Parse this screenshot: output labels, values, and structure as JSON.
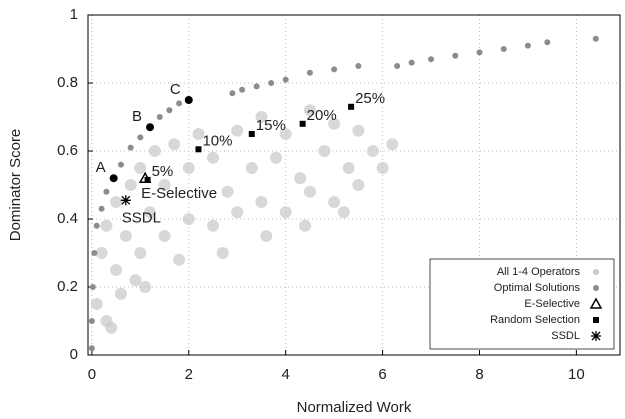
{
  "chart_data": {
    "type": "scatter",
    "x_label": "Normalized Work",
    "y_label": "Dominator Score",
    "xlim": [
      -0.08,
      10.9
    ],
    "ylim": [
      0,
      1
    ],
    "xticks": [
      0,
      2,
      4,
      6,
      8,
      10
    ],
    "yticks": [
      0,
      0.2,
      0.4,
      0.6,
      0.8,
      1
    ],
    "grid": true,
    "legend": "lower right",
    "series": [
      {
        "name": "All 1-4 Operators",
        "color": "#c8c8c8",
        "marker": "cloud",
        "x": [
          0.1,
          0.2,
          0.3,
          0.5,
          0.5,
          0.7,
          0.8,
          1.0,
          1.0,
          1.2,
          1.3,
          1.5,
          1.5,
          1.7,
          2.0,
          2.0,
          2.2,
          2.5,
          2.5,
          2.8,
          3.0,
          3.0,
          3.3,
          3.5,
          3.5,
          3.8,
          4.0,
          4.0,
          4.3,
          4.5,
          4.5,
          4.8,
          5.0,
          5.0,
          5.3,
          5.5,
          5.5,
          5.8,
          6.0,
          6.2,
          0.3,
          0.6,
          0.9,
          1.8,
          2.7,
          3.6,
          4.4,
          5.2,
          1.1,
          0.4
        ],
        "y": [
          0.15,
          0.3,
          0.38,
          0.25,
          0.45,
          0.35,
          0.5,
          0.3,
          0.55,
          0.42,
          0.6,
          0.35,
          0.5,
          0.62,
          0.4,
          0.55,
          0.65,
          0.38,
          0.58,
          0.48,
          0.42,
          0.66,
          0.55,
          0.45,
          0.7,
          0.58,
          0.42,
          0.65,
          0.52,
          0.48,
          0.72,
          0.6,
          0.45,
          0.68,
          0.55,
          0.5,
          0.66,
          0.6,
          0.55,
          0.62,
          0.1,
          0.18,
          0.22,
          0.28,
          0.3,
          0.35,
          0.38,
          0.42,
          0.2,
          0.08
        ]
      },
      {
        "name": "Optimal Solutions",
        "color": "#8c8c8c",
        "marker": "circle",
        "x": [
          0,
          0,
          0.02,
          0.05,
          0.1,
          0.2,
          0.3,
          0.45,
          0.6,
          0.8,
          1.0,
          1.2,
          1.4,
          1.6,
          1.8,
          2.0,
          2.9,
          3.1,
          3.4,
          3.7,
          4.0,
          4.5,
          5.0,
          5.5,
          6.3,
          6.6,
          7.0,
          7.5,
          8.0,
          8.5,
          9.0,
          9.4,
          10.4
        ],
        "y": [
          0.02,
          0.1,
          0.2,
          0.3,
          0.38,
          0.43,
          0.48,
          0.52,
          0.56,
          0.61,
          0.64,
          0.67,
          0.7,
          0.72,
          0.74,
          0.75,
          0.77,
          0.78,
          0.79,
          0.8,
          0.81,
          0.83,
          0.84,
          0.85,
          0.85,
          0.86,
          0.87,
          0.88,
          0.89,
          0.9,
          0.91,
          0.92,
          0.93
        ]
      },
      {
        "name": "E-Selective",
        "color": "#000000",
        "marker": "triangle",
        "x": [
          1.1
        ],
        "y": [
          0.52
        ],
        "point_labels": [
          "E-Selective"
        ]
      },
      {
        "name": "Random Selection",
        "color": "#000000",
        "marker": "square",
        "x": [
          1.15,
          2.2,
          3.3,
          4.35,
          5.35
        ],
        "y": [
          0.515,
          0.605,
          0.65,
          0.68,
          0.73
        ],
        "point_labels": [
          "5%",
          "10%",
          "15%",
          "20%",
          "25%"
        ]
      },
      {
        "name": "SSDL",
        "color": "#000000",
        "marker": "asterisk",
        "x": [
          0.7
        ],
        "y": [
          0.455
        ],
        "point_labels": [
          "SSDL"
        ]
      }
    ],
    "annotations": [
      {
        "text": "A",
        "x": 0.45,
        "y": 0.52
      },
      {
        "text": "B",
        "x": 1.2,
        "y": 0.67
      },
      {
        "text": "C",
        "x": 2.0,
        "y": 0.75
      }
    ]
  }
}
